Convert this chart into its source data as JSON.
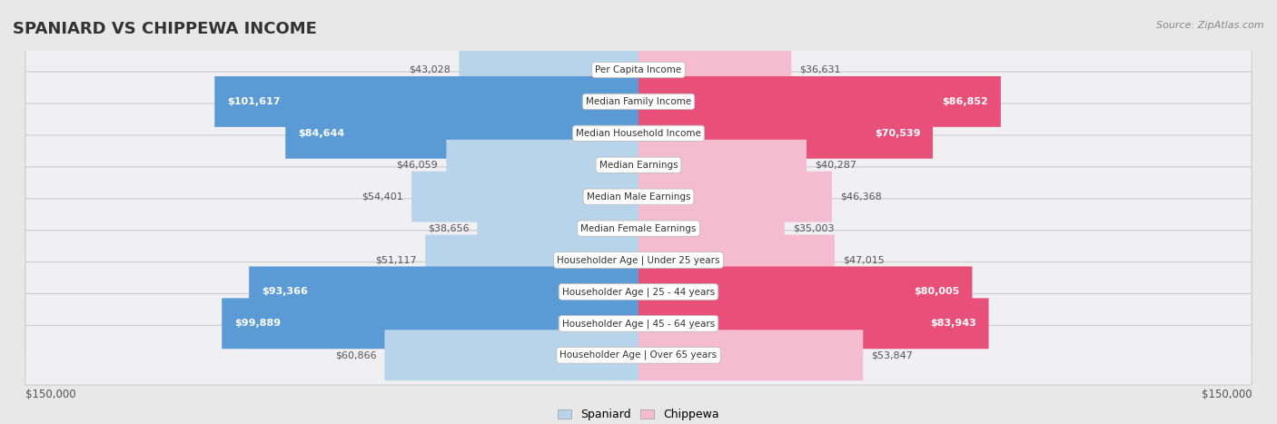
{
  "title": "SPANIARD VS CHIPPEWA INCOME",
  "source": "Source: ZipAtlas.com",
  "categories": [
    "Per Capita Income",
    "Median Family Income",
    "Median Household Income",
    "Median Earnings",
    "Median Male Earnings",
    "Median Female Earnings",
    "Householder Age | Under 25 years",
    "Householder Age | 25 - 44 years",
    "Householder Age | 45 - 64 years",
    "Householder Age | Over 65 years"
  ],
  "spaniard_values": [
    43028,
    101617,
    84644,
    46059,
    54401,
    38656,
    51117,
    93366,
    99889,
    60866
  ],
  "chippewa_values": [
    36631,
    86852,
    70539,
    40287,
    46368,
    35003,
    47015,
    80005,
    83943,
    53847
  ],
  "spaniard_labels": [
    "$43,028",
    "$101,617",
    "$84,644",
    "$46,059",
    "$54,401",
    "$38,656",
    "$51,117",
    "$93,366",
    "$99,889",
    "$60,866"
  ],
  "chippewa_labels": [
    "$36,631",
    "$86,852",
    "$70,539",
    "$40,287",
    "$46,368",
    "$35,003",
    "$47,015",
    "$80,005",
    "$83,943",
    "$53,847"
  ],
  "max_value": 150000,
  "spaniard_color_light": "#b8d4ea",
  "spaniard_color_dark": "#5b9bd5",
  "chippewa_color_light": "#f5bcd0",
  "chippewa_color_dark": "#e8507a",
  "bg_color": "#e8e8e8",
  "row_bg": "#f0f0f2",
  "label_inside": "#ffffff",
  "label_outside": "#555555",
  "inside_threshold": 65000,
  "title_fontsize": 13,
  "source_fontsize": 8,
  "label_fontsize": 8,
  "cat_fontsize": 7.5
}
